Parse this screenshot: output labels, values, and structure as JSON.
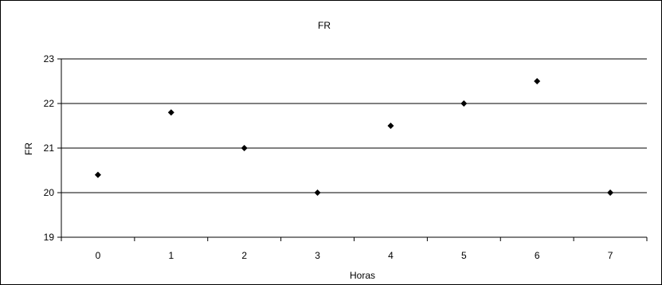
{
  "chart_data": {
    "type": "scatter",
    "title": "FR",
    "xlabel": "Horas",
    "ylabel": "FR",
    "x": [
      0,
      1,
      2,
      3,
      4,
      5,
      6,
      7
    ],
    "y": [
      20.4,
      21.8,
      21.0,
      20.0,
      21.5,
      22.0,
      22.5,
      20.0
    ],
    "xlim": [
      -0.5,
      7.5
    ],
    "ylim": [
      19,
      23
    ],
    "xticks": [
      "0",
      "1",
      "2",
      "3",
      "4",
      "5",
      "6",
      "7"
    ],
    "yticks": [
      "19",
      "20",
      "21",
      "22",
      "23"
    ],
    "grid": "horizontal",
    "legend": "none",
    "marker_color": "#000000"
  }
}
